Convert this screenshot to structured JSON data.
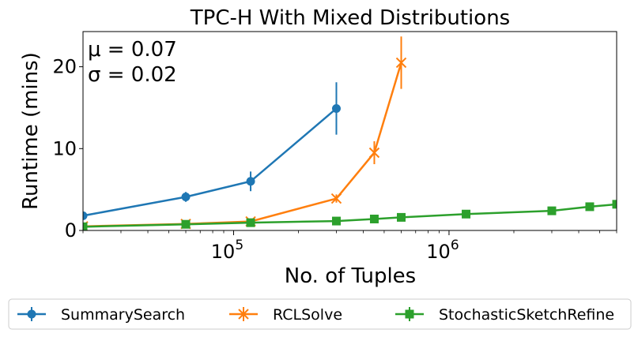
{
  "chart_data": {
    "type": "line",
    "title": "TPC-H With Mixed Distributions",
    "xlabel": "No. of Tuples",
    "ylabel": "Runtime (mins)",
    "xscale": "log",
    "xlim": [
      20000,
      6000000
    ],
    "ylim": [
      0,
      24.3
    ],
    "x_ticks": [
      {
        "value": 100000,
        "label": "10",
        "exp": "5"
      },
      {
        "value": 1000000,
        "label": "10",
        "exp": "6"
      }
    ],
    "y_ticks": [
      {
        "value": 0,
        "label": "0"
      },
      {
        "value": 10,
        "label": "10"
      },
      {
        "value": 20,
        "label": "20"
      }
    ],
    "annotation": [
      "μ = 0.07",
      "σ = 0.02"
    ],
    "legend_position": "bottom, outside plot area",
    "series": [
      {
        "name": "SummarySearch",
        "color": "#1f77b4",
        "marker": "circle",
        "x": [
          20000,
          60000,
          120000,
          300000
        ],
        "y": [
          1.8,
          4.1,
          6.0,
          14.9
        ],
        "err": [
          0.3,
          0.6,
          1.2,
          3.2
        ]
      },
      {
        "name": "RCLSolve",
        "color": "#ff7f0e",
        "marker": "x",
        "x": [
          20000,
          60000,
          120000,
          300000,
          450000,
          600000
        ],
        "y": [
          0.5,
          0.8,
          1.1,
          3.9,
          9.5,
          20.5
        ],
        "err": [
          0.1,
          0.1,
          0.1,
          0.5,
          1.4,
          3.2
        ]
      },
      {
        "name": "StochasticSketchRefine",
        "color": "#2ca02c",
        "marker": "square",
        "x": [
          20000,
          60000,
          120000,
          300000,
          450000,
          600000,
          1200000,
          3000000,
          4500000,
          6000000
        ],
        "y": [
          0.45,
          0.75,
          0.95,
          1.15,
          1.4,
          1.6,
          2.0,
          2.4,
          2.9,
          3.2
        ],
        "err": [
          0.05,
          0.1,
          0.1,
          0.1,
          0.15,
          0.15,
          0.2,
          0.2,
          0.25,
          0.3
        ]
      }
    ]
  }
}
